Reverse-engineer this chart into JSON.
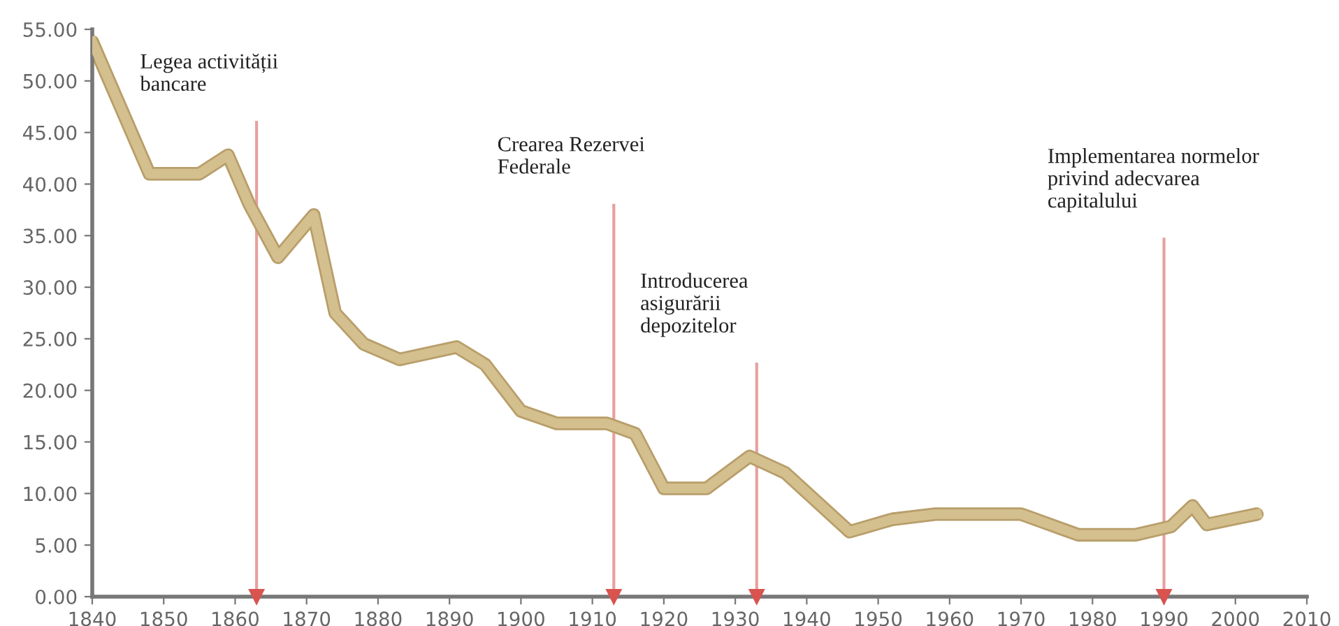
{
  "chart_data": {
    "type": "line",
    "x": [
      1840,
      1848,
      1855,
      1859,
      1862,
      1866,
      1871,
      1874,
      1878,
      1883,
      1891,
      1895,
      1900,
      1905,
      1912,
      1916,
      1920,
      1926,
      1932,
      1937,
      1946,
      1952,
      1958,
      1970,
      1978,
      1986,
      1991,
      1994,
      1996,
      2003
    ],
    "series": [
      {
        "color": "#d4bf8e",
        "values": [
          53.8,
          41,
          41,
          42.8,
          38,
          32.9,
          37,
          27.5,
          24.5,
          23,
          24.2,
          22.5,
          18,
          16.8,
          16.8,
          15.8,
          10.5,
          10.5,
          13.6,
          12,
          6.3,
          7.5,
          8,
          8,
          6,
          6,
          6.8,
          8.8,
          7,
          8
        ]
      }
    ],
    "xlim": [
      1840,
      2010
    ],
    "xticks": [
      1840,
      1850,
      1860,
      1870,
      1880,
      1890,
      1900,
      1910,
      1920,
      1930,
      1940,
      1950,
      1960,
      1970,
      1980,
      1990,
      2000,
      2010
    ],
    "ylim": [
      0,
      55
    ],
    "yticks": [
      {
        "value": 0,
        "label": "0.00"
      },
      {
        "value": 5,
        "label": "5.00"
      },
      {
        "value": 10,
        "label": "10.00"
      },
      {
        "value": 15,
        "label": "15.00"
      },
      {
        "value": 20,
        "label": "20.00"
      },
      {
        "value": 25,
        "label": "25.00"
      },
      {
        "value": 30,
        "label": "30.00"
      },
      {
        "value": 35,
        "label": "35.00"
      },
      {
        "value": 40,
        "label": "40.00"
      },
      {
        "value": 45,
        "label": "45.00"
      },
      {
        "value": 50,
        "label": "50.00"
      },
      {
        "value": 55,
        "label": "55.00"
      }
    ],
    "ref_lines": [
      {
        "axis": "x",
        "value": 1863,
        "label": "Legea activității\nbancare",
        "color": "#e8a0a0"
      },
      {
        "axis": "x",
        "value": 1913,
        "label": "Crearea Rezervei\nFederale",
        "color": "#e8a0a0"
      },
      {
        "axis": "x",
        "value": 1933,
        "label": "Introducerea\nasigurării\ndepozitelor",
        "color": "#e8a0a0"
      },
      {
        "axis": "x",
        "value": 1990,
        "label": "Implementarea normelor\nprivind adecvarea\ncapitalului",
        "color": "#e8a0a0"
      }
    ],
    "grid": false,
    "legend": false,
    "marker": "none",
    "line_style": "solid"
  }
}
